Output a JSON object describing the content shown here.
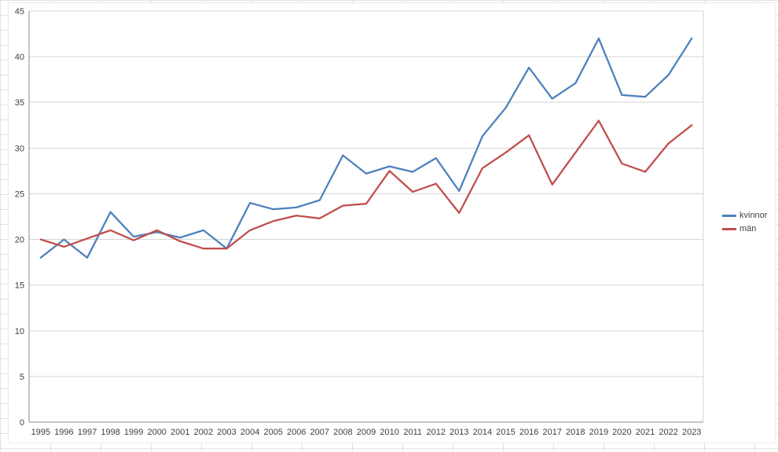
{
  "chart_data": {
    "type": "line",
    "title": "",
    "xlabel": "",
    "ylabel": "",
    "categories": [
      "1995",
      "1996",
      "1997",
      "1998",
      "1999",
      "2000",
      "2001",
      "2002",
      "2003",
      "2004",
      "2005",
      "2006",
      "2007",
      "2008",
      "2009",
      "2010",
      "2011",
      "2012",
      "2013",
      "2014",
      "2015",
      "2016",
      "2017",
      "2018",
      "2019",
      "2020",
      "2021",
      "2022",
      "2023"
    ],
    "series": [
      {
        "name": "kvinnor",
        "color": "#4F81BD",
        "values": [
          18,
          20,
          18,
          23,
          20.3,
          20.8,
          20.2,
          21,
          19,
          24,
          23.3,
          23.5,
          24.3,
          29.2,
          27.2,
          28,
          27.4,
          28.9,
          25.3,
          31.3,
          34.4,
          38.8,
          35.4,
          37.1,
          42,
          35.8,
          35.6,
          38,
          42
        ]
      },
      {
        "name": "män",
        "color": "#C0504D",
        "values": [
          20,
          19.2,
          20.1,
          21,
          19.9,
          21,
          19.8,
          19,
          19,
          21,
          22,
          22.6,
          22.3,
          23.7,
          23.9,
          27.5,
          25.2,
          26.1,
          22.9,
          27.8,
          29.5,
          31.4,
          26,
          29.5,
          33,
          28.3,
          27.4,
          30.5,
          32.5
        ]
      }
    ],
    "ylim": [
      0,
      45
    ],
    "ytick": 5,
    "grid": true,
    "legend_position": "right",
    "axis_text_color": "#3f3f3f",
    "gridline_color": "#d6d6d6",
    "axis_line_color": "#8c8c8c"
  }
}
